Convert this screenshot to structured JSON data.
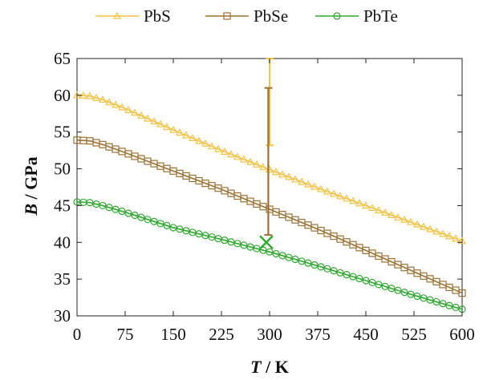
{
  "chart_data": {
    "type": "line",
    "xlabel_var": "T",
    "xlabel_unit": " / K",
    "ylabel_var": "B",
    "ylabel_unit": " / GPa",
    "xlim": [
      0,
      600
    ],
    "ylim": [
      30,
      65
    ],
    "xticks": [
      0,
      75,
      150,
      225,
      300,
      375,
      450,
      525,
      600
    ],
    "yticks": [
      30,
      35,
      40,
      45,
      50,
      55,
      60,
      65
    ],
    "grid": false,
    "legend_position": "top",
    "marker_step": 10,
    "series": [
      {
        "name": "PbS",
        "color": "#f5c242",
        "marker": "triangle",
        "x": [
          0,
          20,
          40,
          75,
          150,
          225,
          300,
          375,
          450,
          525,
          600
        ],
        "y": [
          60.0,
          59.9,
          59.4,
          58.2,
          55.3,
          52.5,
          49.9,
          47.4,
          45.0,
          42.6,
          40.2
        ]
      },
      {
        "name": "PbSe",
        "color": "#a07030",
        "marker": "square",
        "x": [
          0,
          20,
          40,
          75,
          150,
          225,
          300,
          375,
          450,
          525,
          600
        ],
        "y": [
          53.9,
          53.8,
          53.3,
          52.2,
          49.7,
          47.2,
          44.5,
          41.8,
          38.9,
          36.0,
          33.1
        ]
      },
      {
        "name": "PbTe",
        "color": "#2eaa2e",
        "marker": "circle",
        "x": [
          0,
          20,
          40,
          75,
          150,
          225,
          300,
          375,
          450,
          525,
          600
        ],
        "y": [
          45.5,
          45.4,
          45.0,
          44.1,
          42.0,
          40.4,
          38.7,
          36.8,
          34.8,
          32.8,
          30.9
        ]
      }
    ],
    "error_bars": [
      {
        "series": "PbS",
        "x": 300,
        "y_low": 53.2,
        "y_high": 65.0,
        "color": "#f5c242"
      },
      {
        "series": "PbSe",
        "x": 298,
        "y_low": 41.0,
        "y_high": 61.0,
        "color": "#a07030"
      }
    ],
    "reference_points": [
      {
        "series": "PbTe",
        "x": 295,
        "y": 40.0,
        "marker": "x",
        "color": "#2eaa2e"
      }
    ]
  }
}
